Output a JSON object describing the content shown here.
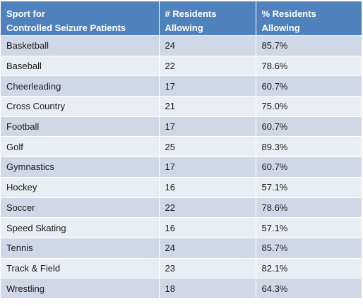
{
  "header": {
    "col1_line1": "Sport  for",
    "col1_line2": "Controlled Seizure Patients",
    "col2_line1": "# Residents",
    "col2_line2": "Allowing",
    "col3_line1": "% Residents",
    "col3_line2": "Allowing"
  },
  "rows": [
    {
      "sport": "Basketball",
      "count": "24",
      "percent": "85.7%"
    },
    {
      "sport": "Baseball",
      "count": "22",
      "percent": "78.6%"
    },
    {
      "sport": "Cheerleading",
      "count": "17",
      "percent": "60.7%"
    },
    {
      "sport": "Cross Country",
      "count": "21",
      "percent": "75.0%"
    },
    {
      "sport": "Football",
      "count": "17",
      "percent": "60.7%"
    },
    {
      "sport": "Golf",
      "count": "25",
      "percent": "89.3%"
    },
    {
      "sport": "Gymnastics",
      "count": "17",
      "percent": "60.7%"
    },
    {
      "sport": "Hockey",
      "count": "16",
      "percent": "57.1%"
    },
    {
      "sport": "Soccer",
      "count": "22",
      "percent": "78.6%"
    },
    {
      "sport": "Speed Skating",
      "count": "16",
      "percent": "57.1%"
    },
    {
      "sport": "Tennis",
      "count": "24",
      "percent": "85.7%"
    },
    {
      "sport": "Track & Field",
      "count": "23",
      "percent": "82.1%"
    },
    {
      "sport": "Wrestling",
      "count": "18",
      "percent": "64.3%"
    }
  ],
  "colors": {
    "header_bg": "#4f81bd",
    "row_odd_bg": "#d0d8e8",
    "row_even_bg": "#e9edf4"
  }
}
